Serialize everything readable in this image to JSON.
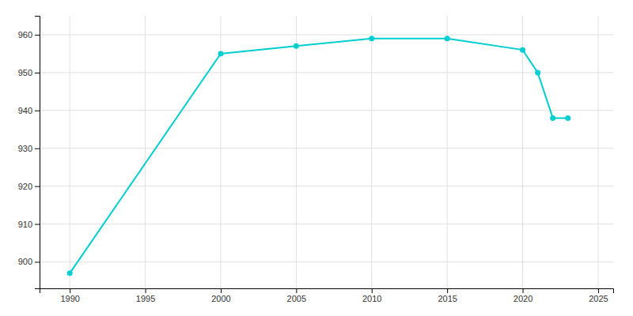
{
  "chart_data": {
    "type": "line",
    "x": [
      1990,
      2000,
      2005,
      2010,
      2015,
      2020,
      2021,
      2022,
      2023
    ],
    "values": [
      897,
      955,
      957,
      959,
      959,
      956,
      950,
      938,
      938
    ],
    "color": "#00CED1",
    "marker": "circle",
    "xlim": [
      1988,
      2026
    ],
    "ylim": [
      893,
      965
    ],
    "xticks": [
      1990,
      1995,
      2000,
      2005,
      2010,
      2015,
      2020,
      2025
    ],
    "yticks": [
      900,
      910,
      920,
      930,
      940,
      950,
      960
    ],
    "grid": true
  }
}
